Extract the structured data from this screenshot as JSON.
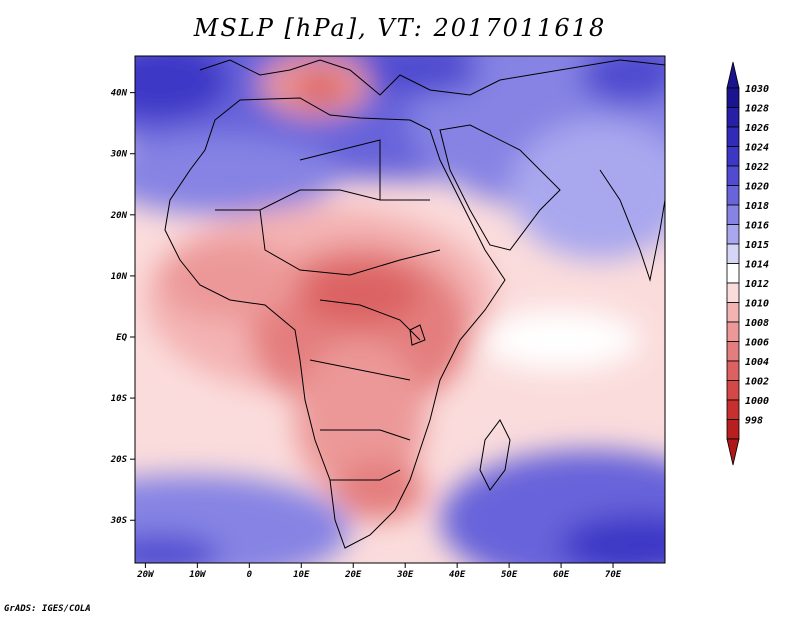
{
  "title": "MSLP [hPa], VT: 2017011618",
  "credit": "GrADS: IGES/COLA",
  "map": {
    "lon_range": [
      -22,
      80
    ],
    "lat_range": [
      -37,
      46
    ],
    "lat_ticks": [
      {
        "value": 40,
        "label": "40N"
      },
      {
        "value": 30,
        "label": "30N"
      },
      {
        "value": 20,
        "label": "20N"
      },
      {
        "value": 10,
        "label": "10N"
      },
      {
        "value": 0,
        "label": "EQ"
      },
      {
        "value": -10,
        "label": "10S"
      },
      {
        "value": -20,
        "label": "20S"
      },
      {
        "value": -30,
        "label": "30S"
      }
    ],
    "lon_ticks": [
      {
        "value": -20,
        "label": "20W"
      },
      {
        "value": -10,
        "label": "10W"
      },
      {
        "value": 0,
        "label": "0"
      },
      {
        "value": 10,
        "label": "10E"
      },
      {
        "value": 20,
        "label": "20E"
      },
      {
        "value": 30,
        "label": "30E"
      },
      {
        "value": 40,
        "label": "40E"
      },
      {
        "value": 50,
        "label": "50E"
      },
      {
        "value": 60,
        "label": "60E"
      },
      {
        "value": 70,
        "label": "70E"
      }
    ]
  },
  "colorbar": {
    "levels": [
      {
        "label": "1030",
        "color": "#1a1490"
      },
      {
        "label": "1028",
        "color": "#2520a6"
      },
      {
        "label": "1026",
        "color": "#312bb8"
      },
      {
        "label": "1024",
        "color": "#3d37c6"
      },
      {
        "label": "1022",
        "color": "#504bd0"
      },
      {
        "label": "1020",
        "color": "#6864da"
      },
      {
        "label": "1018",
        "color": "#8683e4"
      },
      {
        "label": "1016",
        "color": "#a9a7ee"
      },
      {
        "label": "1015",
        "color": "#d6d5f7"
      },
      {
        "label": "1014",
        "color": "#ffffff"
      },
      {
        "label": "1012",
        "color": "#fbdcdc"
      },
      {
        "label": "1010",
        "color": "#f4b3b3"
      },
      {
        "label": "1008",
        "color": "#ec9898"
      },
      {
        "label": "1006",
        "color": "#e47e7e"
      },
      {
        "label": "1004",
        "color": "#dc6262"
      },
      {
        "label": "1002",
        "color": "#d44848"
      },
      {
        "label": "1000",
        "color": "#c83030"
      },
      {
        "label": "998",
        "color": "#b81f1f"
      }
    ],
    "top_color": "#1a1490",
    "bottom_color": "#b01818"
  }
}
